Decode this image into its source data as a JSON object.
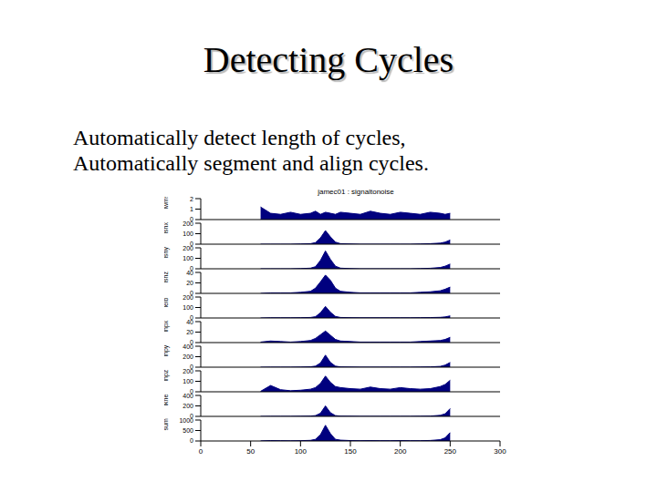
{
  "slide": {
    "title": "Detecting Cycles",
    "lines": [
      "Automatically detect length of cycles,",
      "Automatically segment and align cycles."
    ]
  },
  "chart_data": [
    {
      "type": "area",
      "title": "jamec01 : signaltonoise",
      "ylabel": "lwmse",
      "color": "#00007f",
      "tick_labels": "y",
      "x": [
        60,
        70,
        80,
        90,
        100,
        110,
        115,
        120,
        125,
        130,
        135,
        140,
        150,
        160,
        170,
        180,
        190,
        200,
        210,
        220,
        230,
        240,
        245,
        250
      ],
      "values": [
        1.2,
        0.6,
        0.5,
        0.7,
        0.5,
        0.6,
        0.8,
        0.5,
        0.7,
        0.6,
        0.5,
        0.7,
        0.6,
        0.5,
        0.8,
        0.6,
        0.5,
        0.7,
        0.6,
        0.5,
        0.7,
        0.6,
        0.5,
        0.6
      ],
      "xlim": [
        0,
        300
      ],
      "xticks": [
        0,
        50,
        100,
        150,
        200,
        250,
        300
      ],
      "ylim": [
        0,
        2
      ],
      "yticks": [
        0,
        1,
        2
      ]
    },
    {
      "type": "area",
      "ylabel": "lshx",
      "color": "#00007f",
      "tick_labels": "y",
      "x": [
        60,
        70,
        80,
        90,
        100,
        110,
        115,
        120,
        125,
        130,
        135,
        140,
        150,
        160,
        170,
        180,
        190,
        200,
        210,
        220,
        230,
        240,
        245,
        250
      ],
      "values": [
        0,
        0,
        0,
        0,
        2,
        5,
        15,
        60,
        130,
        70,
        20,
        5,
        2,
        0,
        0,
        0,
        0,
        0,
        0,
        2,
        5,
        10,
        20,
        40
      ],
      "xlim": [
        0,
        300
      ],
      "xticks": [
        0,
        50,
        100,
        150,
        200,
        250,
        300
      ],
      "ylim": [
        0,
        200
      ],
      "yticks": [
        0,
        100,
        200
      ]
    },
    {
      "type": "area",
      "ylabel": "lshy",
      "color": "#00007f",
      "tick_labels": "y",
      "x": [
        60,
        70,
        80,
        90,
        100,
        110,
        115,
        120,
        125,
        130,
        135,
        140,
        150,
        160,
        170,
        180,
        190,
        200,
        210,
        220,
        230,
        240,
        245,
        250
      ],
      "values": [
        0,
        0,
        0,
        0,
        2,
        6,
        20,
        80,
        170,
        90,
        25,
        6,
        2,
        0,
        0,
        0,
        0,
        0,
        0,
        2,
        5,
        12,
        25,
        45
      ],
      "xlim": [
        0,
        300
      ],
      "xticks": [
        0,
        50,
        100,
        150,
        200,
        250,
        300
      ],
      "ylim": [
        0,
        200
      ],
      "yticks": [
        0,
        100,
        200
      ]
    },
    {
      "type": "area",
      "ylabel": "lshz",
      "color": "#00007f",
      "tick_labels": "y",
      "x": [
        60,
        70,
        80,
        90,
        100,
        110,
        115,
        120,
        125,
        130,
        135,
        140,
        150,
        160,
        170,
        180,
        190,
        200,
        210,
        220,
        230,
        240,
        245,
        250
      ],
      "values": [
        0,
        1,
        1,
        1,
        2,
        4,
        10,
        22,
        35,
        25,
        10,
        4,
        2,
        1,
        1,
        1,
        1,
        1,
        1,
        2,
        3,
        5,
        8,
        12
      ],
      "xlim": [
        0,
        300
      ],
      "xticks": [
        0,
        50,
        100,
        150,
        200,
        250,
        300
      ],
      "ylim": [
        0,
        40
      ],
      "yticks": [
        0,
        20,
        40
      ]
    },
    {
      "type": "area",
      "ylabel": "lelb",
      "color": "#00007f",
      "tick_labels": "y",
      "x": [
        60,
        70,
        80,
        90,
        100,
        110,
        115,
        120,
        125,
        130,
        135,
        140,
        150,
        160,
        170,
        180,
        190,
        200,
        210,
        220,
        230,
        240,
        245,
        250
      ],
      "values": [
        0,
        2,
        2,
        2,
        3,
        5,
        12,
        50,
        110,
        55,
        15,
        5,
        3,
        2,
        2,
        2,
        2,
        2,
        2,
        3,
        4,
        6,
        10,
        20
      ],
      "xlim": [
        0,
        300
      ],
      "xticks": [
        0,
        50,
        100,
        150,
        200,
        250,
        300
      ],
      "ylim": [
        0,
        200
      ],
      "yticks": [
        0,
        100,
        200
      ]
    },
    {
      "type": "area",
      "ylabel": "lhpx",
      "color": "#00007f",
      "tick_labels": "y",
      "x": [
        60,
        70,
        80,
        90,
        100,
        110,
        115,
        120,
        125,
        130,
        135,
        140,
        150,
        160,
        170,
        180,
        190,
        200,
        210,
        220,
        230,
        240,
        245,
        250
      ],
      "values": [
        1,
        3,
        2,
        1,
        2,
        4,
        8,
        15,
        22,
        14,
        6,
        3,
        2,
        1,
        1,
        1,
        1,
        1,
        1,
        2,
        3,
        4,
        6,
        10
      ],
      "xlim": [
        0,
        300
      ],
      "xticks": [
        0,
        50,
        100,
        150,
        200,
        250,
        300
      ],
      "ylim": [
        0,
        40
      ],
      "yticks": [
        0,
        20,
        40
      ]
    },
    {
      "type": "area",
      "ylabel": "lhpy",
      "color": "#00007f",
      "tick_labels": "y",
      "x": [
        60,
        70,
        80,
        90,
        100,
        110,
        115,
        120,
        125,
        130,
        135,
        140,
        150,
        160,
        170,
        180,
        190,
        200,
        210,
        220,
        230,
        240,
        245,
        250
      ],
      "values": [
        0,
        2,
        2,
        2,
        3,
        8,
        20,
        80,
        230,
        90,
        20,
        6,
        3,
        2,
        2,
        2,
        2,
        2,
        2,
        3,
        6,
        15,
        40,
        90
      ],
      "xlim": [
        0,
        300
      ],
      "xticks": [
        0,
        50,
        100,
        150,
        200,
        250,
        300
      ],
      "ylim": [
        0,
        400
      ],
      "yticks": [
        0,
        200,
        400
      ]
    },
    {
      "type": "area",
      "ylabel": "lhpz",
      "color": "#00007f",
      "tick_labels": "y",
      "x": [
        60,
        70,
        80,
        90,
        100,
        110,
        115,
        120,
        125,
        130,
        135,
        140,
        150,
        160,
        170,
        180,
        190,
        200,
        210,
        220,
        230,
        240,
        245,
        250
      ],
      "values": [
        5,
        60,
        20,
        10,
        15,
        25,
        40,
        80,
        150,
        90,
        50,
        40,
        30,
        25,
        45,
        30,
        25,
        40,
        30,
        25,
        30,
        50,
        70,
        110
      ],
      "xlim": [
        0,
        300
      ],
      "xticks": [
        0,
        50,
        100,
        150,
        200,
        250,
        300
      ],
      "ylim": [
        0,
        200
      ],
      "yticks": [
        0,
        100,
        200
      ]
    },
    {
      "type": "area",
      "ylabel": "lkne",
      "color": "#00007f",
      "tick_labels": "y",
      "x": [
        60,
        70,
        80,
        90,
        100,
        110,
        115,
        120,
        125,
        130,
        135,
        140,
        150,
        160,
        170,
        180,
        190,
        200,
        210,
        220,
        230,
        240,
        245,
        250
      ],
      "values": [
        0,
        2,
        2,
        2,
        3,
        6,
        15,
        60,
        200,
        70,
        15,
        5,
        3,
        2,
        2,
        2,
        2,
        2,
        2,
        3,
        6,
        20,
        50,
        150
      ],
      "xlim": [
        0,
        300
      ],
      "xticks": [
        0,
        50,
        100,
        150,
        200,
        250,
        300
      ],
      "ylim": [
        0,
        400
      ],
      "yticks": [
        0,
        200,
        400
      ]
    },
    {
      "type": "area",
      "ylabel": "sum",
      "color": "#00007f",
      "tick_labels": true,
      "x": [
        60,
        70,
        80,
        90,
        100,
        110,
        115,
        120,
        125,
        130,
        135,
        140,
        150,
        160,
        170,
        180,
        190,
        200,
        210,
        220,
        230,
        240,
        245,
        250
      ],
      "values": [
        5,
        20,
        15,
        10,
        15,
        30,
        80,
        300,
        750,
        350,
        80,
        40,
        20,
        15,
        20,
        15,
        15,
        20,
        15,
        15,
        25,
        60,
        150,
        400
      ],
      "xlim": [
        0,
        300
      ],
      "xticks": [
        0,
        50,
        100,
        150,
        200,
        250,
        300
      ],
      "ylim": [
        0,
        1000
      ],
      "yticks": [
        0,
        500,
        1000
      ]
    }
  ]
}
